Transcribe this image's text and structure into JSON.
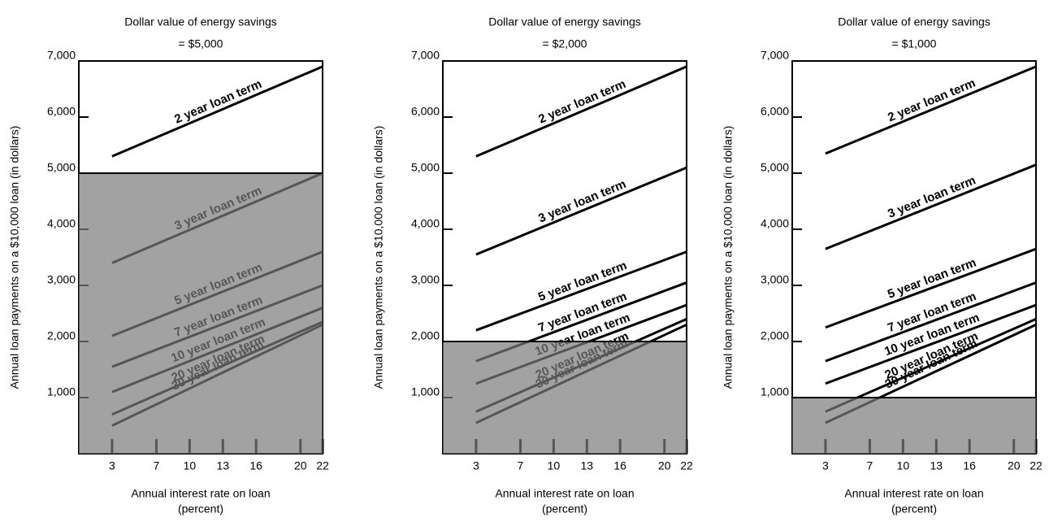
{
  "chart_data": [
    {
      "type": "line",
      "title": "Dollar value of energy savings",
      "savings_label": "= $5,000",
      "savings": 5000,
      "y_label": "Annual loan payments on a $10,000 loan (in dollars)",
      "x_label": "Annual interest rate on loan",
      "x_unit": "(percent)",
      "x": [
        3,
        22
      ],
      "xlim": [
        0,
        22
      ],
      "ylim": [
        0,
        7000
      ],
      "xticks": [
        3,
        7,
        10,
        13,
        16,
        20,
        22
      ],
      "yticks": [
        {
          "value": 1000,
          "label": "1,000"
        },
        {
          "value": 2000,
          "label": "2,000"
        },
        {
          "value": 3000,
          "label": "3,000"
        },
        {
          "value": 4000,
          "label": "4,000"
        },
        {
          "value": 5000,
          "label": "5,000"
        },
        {
          "value": 6000,
          "label": "6,000"
        },
        {
          "value": 7000,
          "label": "7,000"
        }
      ],
      "series": [
        {
          "name": "2 year loan term",
          "color": "#000000",
          "values": [
            5300,
            6900
          ]
        },
        {
          "name": "3 year loan term",
          "color": "#000000",
          "values": [
            3400,
            5000
          ]
        },
        {
          "name": "5 year loan term",
          "color": "#000000",
          "values": [
            2100,
            3600
          ]
        },
        {
          "name": "7 year loan term",
          "color": "#000000",
          "values": [
            1550,
            3000
          ]
        },
        {
          "name": "10 year loan term",
          "color": "#000000",
          "values": [
            1100,
            2600
          ]
        },
        {
          "name": "20 year loan term",
          "color": "#000000",
          "values": [
            700,
            2350
          ]
        },
        {
          "name": "30 year loan term",
          "color": "#000000",
          "values": [
            500,
            2300
          ]
        }
      ]
    },
    {
      "type": "line",
      "title": "Dollar value of energy savings",
      "savings_label": "= $2,000",
      "savings": 2000,
      "y_label": "Annual loan payments on a $10,000 loan (in dollars)",
      "x_label": "Annual interest rate on loan",
      "x_unit": "(percent)",
      "x": [
        3,
        22
      ],
      "xlim": [
        0,
        22
      ],
      "ylim": [
        0,
        7000
      ],
      "xticks": [
        3,
        7,
        10,
        13,
        16,
        20,
        22
      ],
      "yticks": [
        {
          "value": 1000,
          "label": "1,000"
        },
        {
          "value": 2000,
          "label": "2,000"
        },
        {
          "value": 3000,
          "label": "3,000"
        },
        {
          "value": 4000,
          "label": "4,000"
        },
        {
          "value": 5000,
          "label": "5,000"
        },
        {
          "value": 6000,
          "label": "6,000"
        },
        {
          "value": 7000,
          "label": "7,000"
        }
      ],
      "series": [
        {
          "name": "2 year loan term",
          "color": "#000000",
          "values": [
            5300,
            6900
          ]
        },
        {
          "name": "3 year loan term",
          "color": "#000000",
          "values": [
            3550,
            5100
          ]
        },
        {
          "name": "5 year loan term",
          "color": "#000000",
          "values": [
            2200,
            3600
          ]
        },
        {
          "name": "7 year loan term",
          "color": "#000000",
          "values": [
            1650,
            3050
          ]
        },
        {
          "name": "10 year loan term",
          "color": "#000000",
          "values": [
            1250,
            2650
          ]
        },
        {
          "name": "20 year loan term",
          "color": "#000000",
          "values": [
            750,
            2400
          ]
        },
        {
          "name": "30 year loan term",
          "color": "#000000",
          "values": [
            550,
            2300
          ]
        }
      ]
    },
    {
      "type": "line",
      "title": "Dollar value of energy savings",
      "savings_label": "= $1,000",
      "savings": 1000,
      "y_label": "Annual loan payments on a $10,000 loan (in dollars)",
      "x_label": "Annual interest rate on loan",
      "x_unit": "(percent)",
      "x": [
        3,
        22
      ],
      "xlim": [
        0,
        22
      ],
      "ylim": [
        0,
        7000
      ],
      "xticks": [
        3,
        7,
        10,
        13,
        16,
        20,
        22
      ],
      "yticks": [
        {
          "value": 1000,
          "label": "1,000"
        },
        {
          "value": 2000,
          "label": "2,000"
        },
        {
          "value": 3000,
          "label": "3,000"
        },
        {
          "value": 4000,
          "label": "4,000"
        },
        {
          "value": 5000,
          "label": "5,000"
        },
        {
          "value": 6000,
          "label": "6,000"
        },
        {
          "value": 7000,
          "label": "7,000"
        }
      ],
      "series": [
        {
          "name": "2 year loan term",
          "color": "#000000",
          "values": [
            5350,
            6900
          ]
        },
        {
          "name": "3 year loan term",
          "color": "#000000",
          "values": [
            3650,
            5150
          ]
        },
        {
          "name": "5 year loan term",
          "color": "#000000",
          "values": [
            2250,
            3650
          ]
        },
        {
          "name": "7 year loan term",
          "color": "#000000",
          "values": [
            1650,
            3050
          ]
        },
        {
          "name": "10 year loan term",
          "color": "#000000",
          "values": [
            1250,
            2650
          ]
        },
        {
          "name": "20 year loan term",
          "color": "#000000",
          "values": [
            750,
            2400
          ]
        },
        {
          "name": "30 year loan term",
          "color": "#000000",
          "values": [
            550,
            2300
          ]
        }
      ]
    }
  ]
}
